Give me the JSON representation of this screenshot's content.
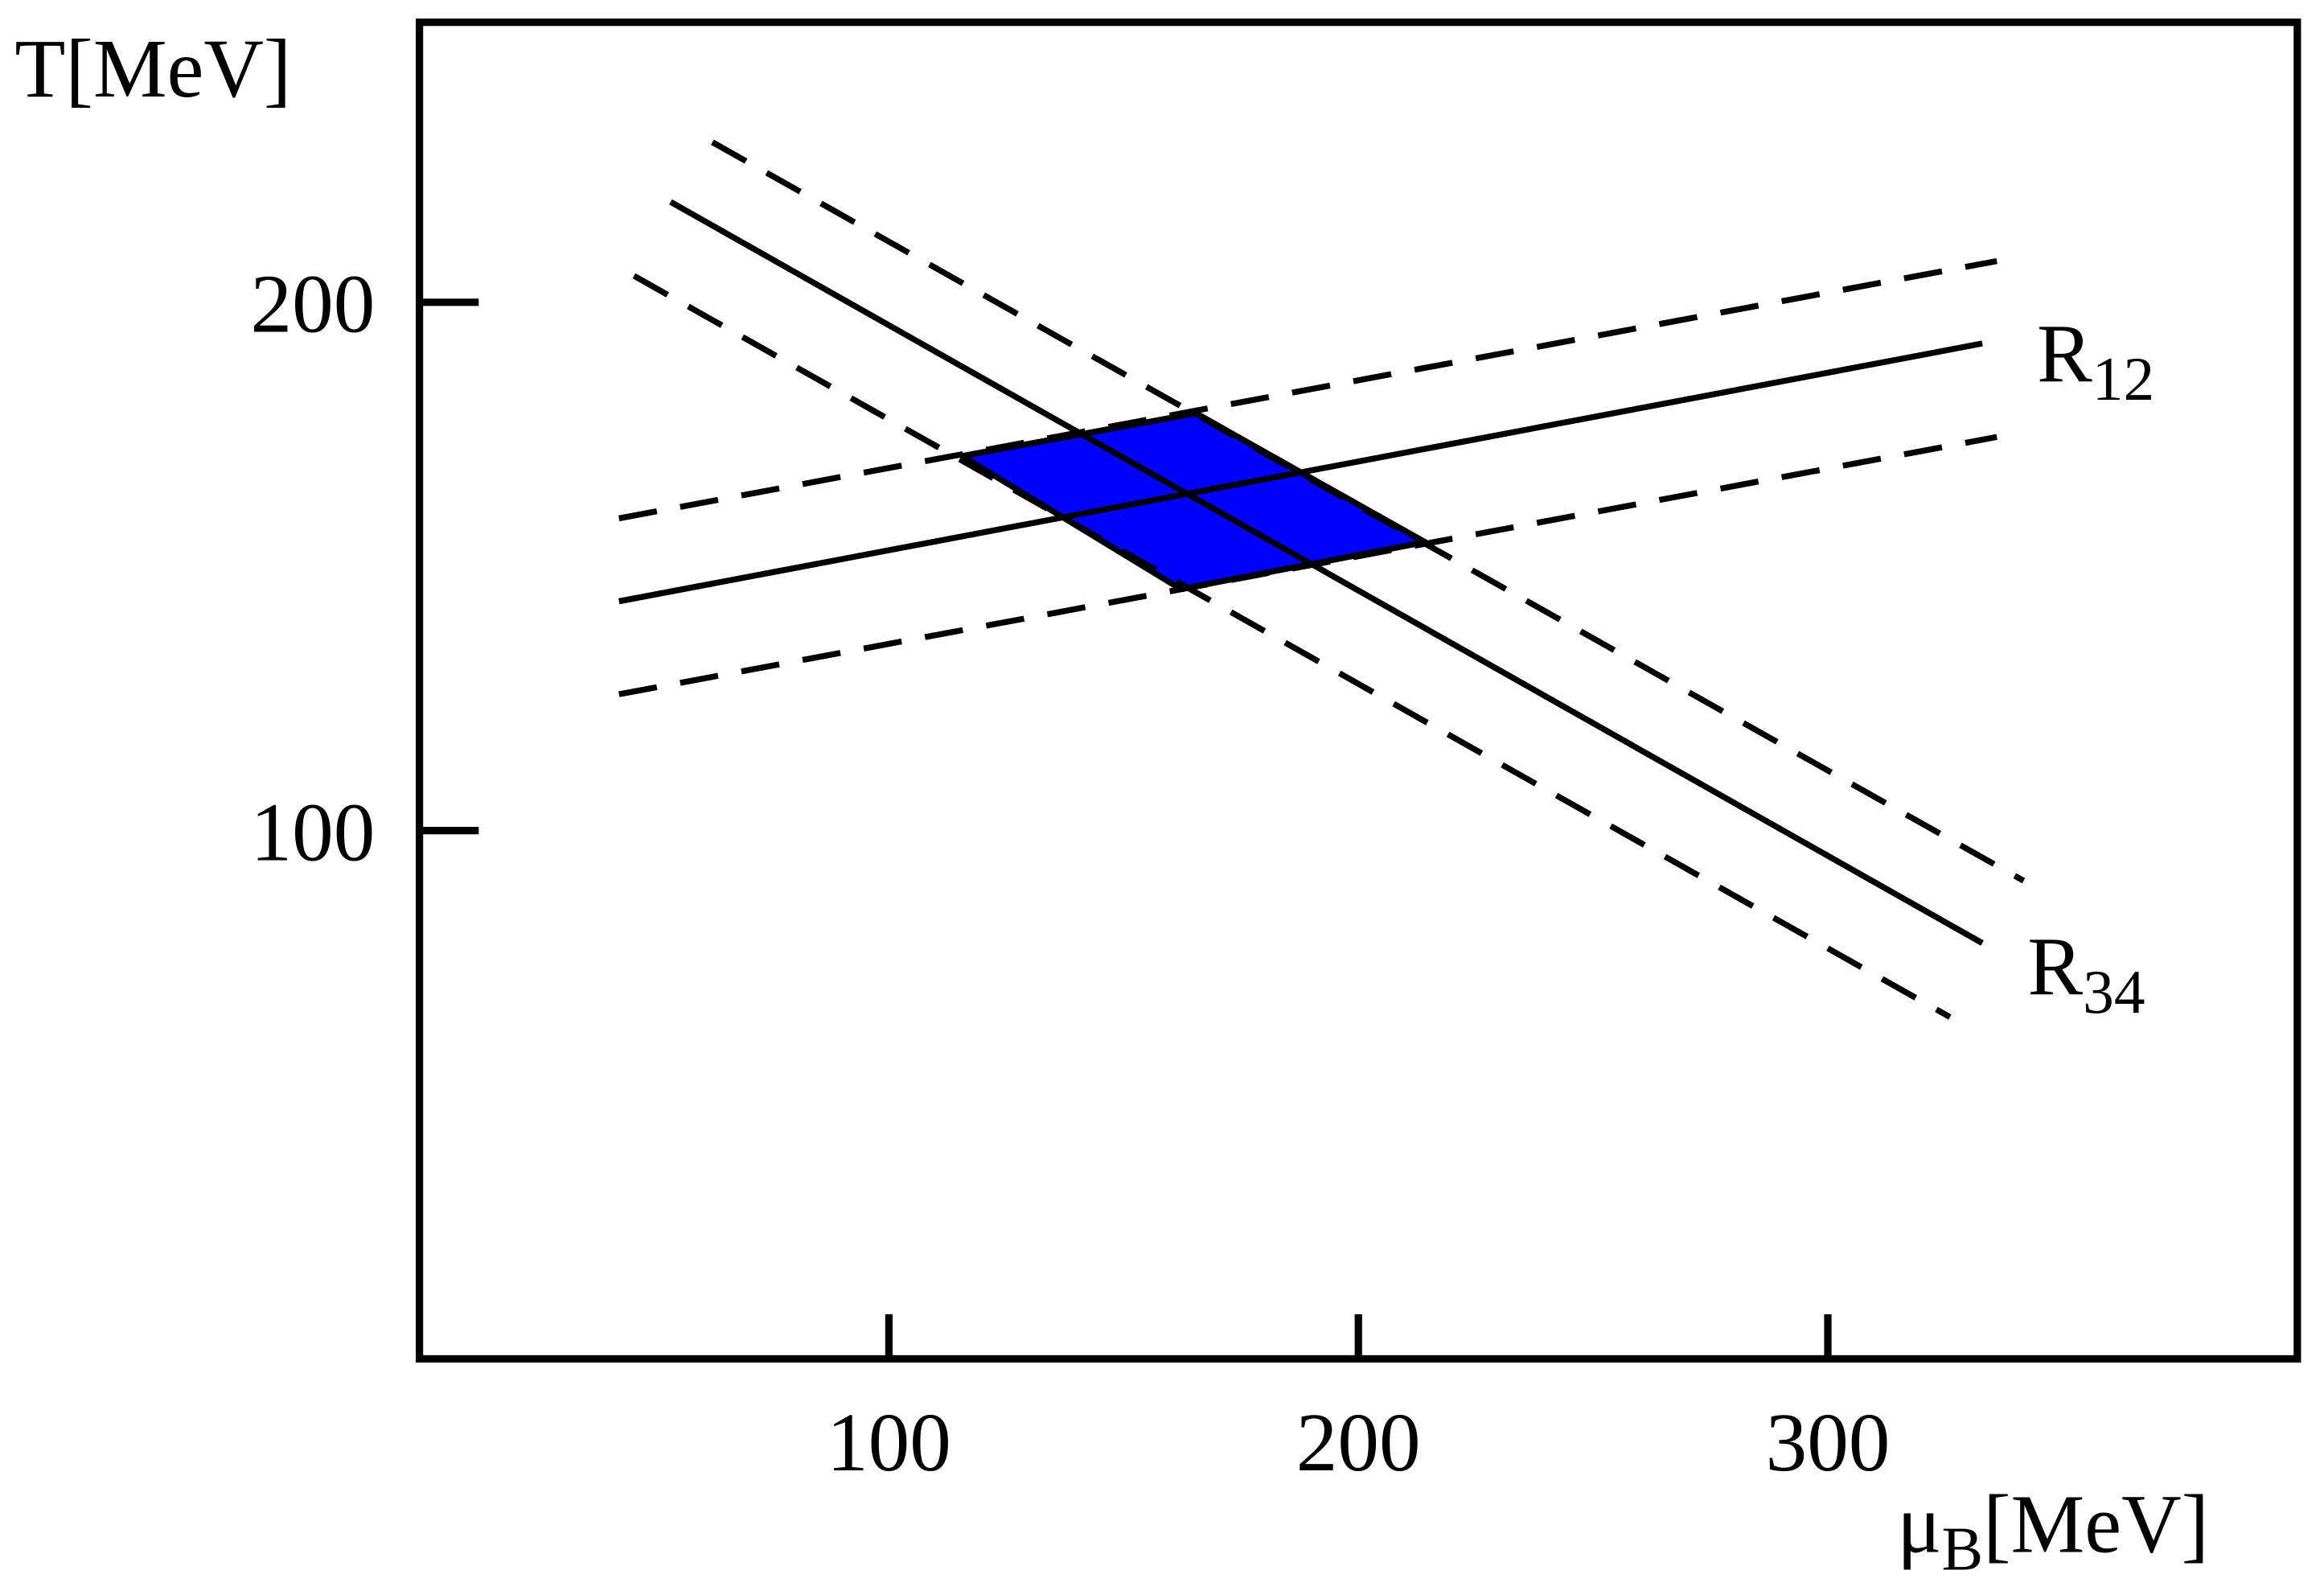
{
  "chart_data": {
    "type": "line",
    "y_label": "T[MeV]",
    "x_label": {
      "base": "μ",
      "subscript": "B",
      "suffix": "[MeV]"
    },
    "xlim": [
      0,
      400
    ],
    "ylim": [
      0,
      253
    ],
    "xticks": [
      100,
      200,
      300
    ],
    "yticks": [
      100,
      200
    ],
    "series": [
      {
        "color": "#000000",
        "dashed": false,
        "x": [
          42.5,
          332.9
        ],
        "values": [
          143.4,
          192.2
        ]
      },
      {
        "color": "#000000",
        "dashed": true,
        "x": [
          42.5,
          336
        ],
        "values": [
          159.1,
          207.8
        ]
      },
      {
        "color": "#000000",
        "dashed": true,
        "x": [
          42.5,
          336
        ],
        "values": [
          125.8,
          174.5
        ]
      },
      {
        "color": "#000000",
        "dashed": false,
        "x": [
          53.5,
          332.9
        ],
        "values": [
          219,
          78.7
        ]
      },
      {
        "color": "#000000",
        "dashed": true,
        "x": [
          62.4,
          341.7
        ],
        "values": [
          230.3,
          90.5
        ]
      },
      {
        "color": "#000000",
        "dashed": true,
        "x": [
          45.7,
          326
        ],
        "values": [
          205,
          64.7
        ]
      }
    ],
    "region": {
      "color": "#0000ff",
      "x": [
        115.6,
        165.4,
        214.2,
        162.2
      ],
      "values": [
        170.9,
        179,
        154.6,
        145.7
      ]
    },
    "annotations": [
      {
        "base": "R",
        "subscript": "12",
        "x": 342,
        "y": 190
      },
      {
        "base": "R",
        "subscript": "34",
        "x": 340,
        "y": 74
      }
    ]
  }
}
